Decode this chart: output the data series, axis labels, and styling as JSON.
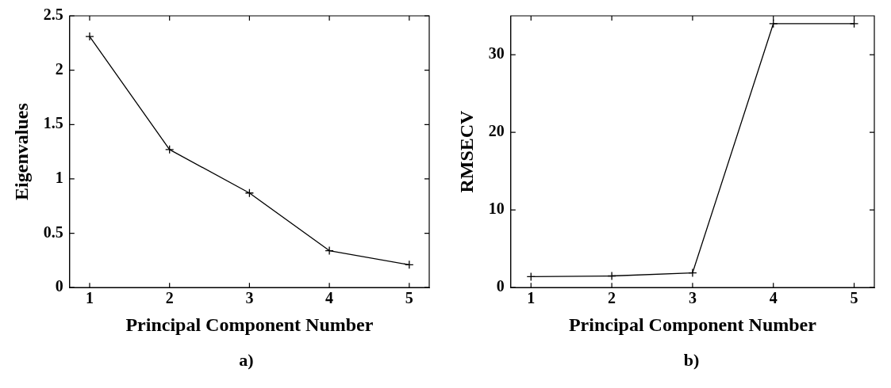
{
  "chart_data": [
    {
      "type": "line",
      "xlabel": "Principal Component Number",
      "ylabel": "Eigenvalues",
      "x": [
        1,
        2,
        3,
        4,
        5
      ],
      "series": [
        {
          "color": "#000000",
          "values": [
            2.31,
            1.27,
            0.87,
            0.34,
            0.21
          ]
        }
      ],
      "xlim": [
        0.75,
        5.25
      ],
      "xticks": [
        1,
        2,
        3,
        4,
        5
      ],
      "ylim": [
        0,
        2.5
      ],
      "yticks": [
        0,
        0.5,
        1,
        1.5,
        2,
        2.5
      ],
      "marker": "cross",
      "grid": false,
      "legend": false,
      "annotations": [
        "a)"
      ]
    },
    {
      "type": "line",
      "xlabel": "Principal Component Number",
      "ylabel": "RMSECV",
      "x": [
        1,
        2,
        3,
        4,
        5
      ],
      "series": [
        {
          "color": "#000000",
          "values": [
            1.4,
            1.5,
            1.9,
            34,
            34
          ]
        }
      ],
      "xlim": [
        0.75,
        5.25
      ],
      "xticks": [
        1,
        2,
        3,
        4,
        5
      ],
      "ylim": [
        0,
        35
      ],
      "yticks": [
        0,
        10,
        20,
        30
      ],
      "marker": "cross",
      "grid": false,
      "legend": false,
      "annotations": [
        "b)"
      ]
    }
  ]
}
